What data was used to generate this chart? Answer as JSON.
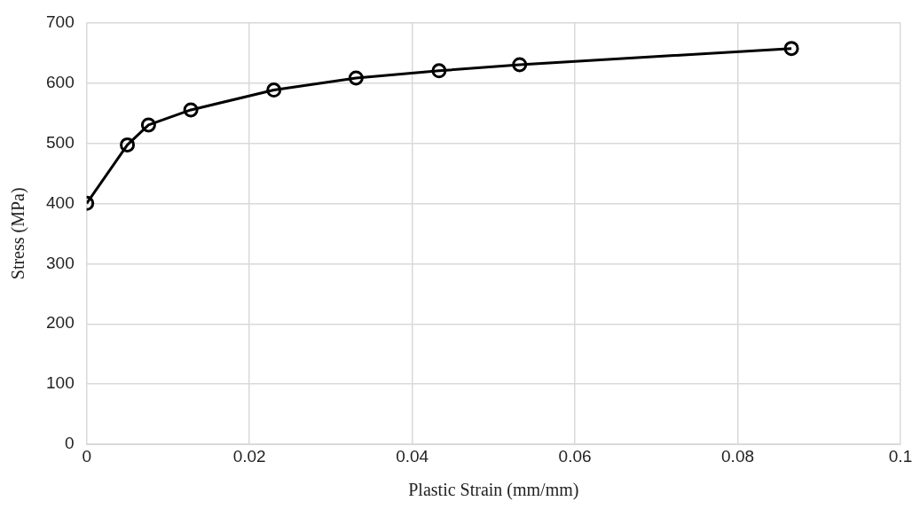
{
  "chart_data": {
    "type": "line",
    "xlabel": "Plastic Strain (mm/mm)",
    "ylabel": "Stress (MPa)",
    "x": [
      0,
      0.005,
      0.0076,
      0.0128,
      0.023,
      0.0331,
      0.0433,
      0.0532,
      0.0866
    ],
    "series": [
      {
        "color": "#000000",
        "values": [
          400,
          497,
          530,
          555,
          588,
          608,
          620,
          630,
          657
        ]
      }
    ],
    "xlim": [
      0,
      0.1
    ],
    "xticks": [
      0,
      0.02,
      0.04,
      0.06,
      0.08,
      0.1
    ],
    "ylim": [
      0,
      700
    ],
    "yticks": [
      0,
      100,
      200,
      300,
      400,
      500,
      600,
      700
    ],
    "grid": true,
    "legend": false,
    "marker": "circle",
    "line_style": "solid"
  }
}
